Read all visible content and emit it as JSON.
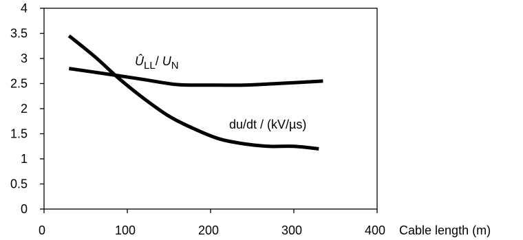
{
  "chart_data": {
    "type": "line",
    "xlabel": "Cable length (m)",
    "ylabel": "",
    "xlim": [
      0,
      400
    ],
    "ylim": [
      0,
      4
    ],
    "x_ticks": [
      0,
      100,
      200,
      300,
      400
    ],
    "y_ticks": [
      0,
      0.5,
      1,
      1.5,
      2,
      2.5,
      3,
      3.5,
      4
    ],
    "grid": false,
    "legend": "none",
    "series": [
      {
        "name": "Û_LL / U_N",
        "label_parts": {
          "main": "Û",
          "main_sub": "LL",
          "sep": "/ ",
          "denom": "U",
          "denom_sub": "N"
        },
        "x": [
          30,
          80,
          120,
          160,
          200,
          240,
          280,
          335
        ],
        "y": [
          2.8,
          2.68,
          2.58,
          2.48,
          2.47,
          2.47,
          2.5,
          2.55
        ]
      },
      {
        "name": "du/dt / (kV/µs)",
        "label_parts": {
          "text": "du/dt / (kV/µs)"
        },
        "x": [
          30,
          60,
          90,
          120,
          150,
          180,
          210,
          240,
          270,
          300,
          330
        ],
        "y": [
          3.45,
          3.05,
          2.6,
          2.2,
          1.85,
          1.6,
          1.4,
          1.3,
          1.25,
          1.25,
          1.2
        ]
      }
    ]
  }
}
